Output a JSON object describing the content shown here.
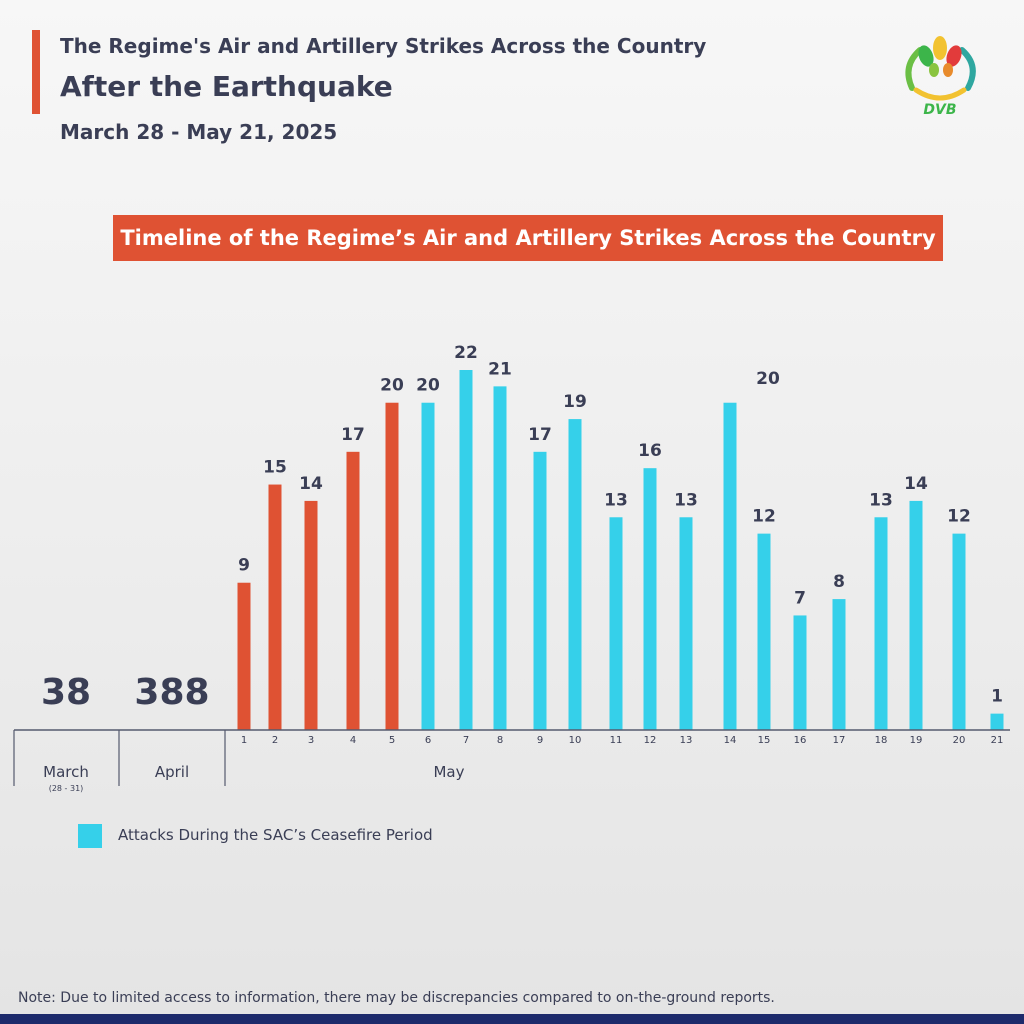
{
  "header": {
    "line1": "The Regime's Air and Artillery Strikes Across the Country",
    "line2": "After the Earthquake",
    "date_range": "March 28 - May 21, 2025"
  },
  "logo": {
    "text": "DVB",
    "icon": "dvb-logo-icon"
  },
  "banner": {
    "text": "Timeline of the Regime’s Air and Artillery Strikes Across the Country"
  },
  "chart_data": {
    "type": "bar",
    "title": "Timeline of the Regime’s Air and Artillery Strikes Across the Country",
    "ylim": [
      0,
      22
    ],
    "grid": false,
    "summaries": [
      {
        "label": "March",
        "sublabel": "(28 - 31)",
        "value": "38"
      },
      {
        "label": "April",
        "sublabel": "",
        "value": "388"
      }
    ],
    "month_label": "May",
    "categories": [
      "1",
      "2",
      "3",
      "4",
      "5",
      "6",
      "7",
      "8",
      "9",
      "10",
      "11",
      "12",
      "13",
      "14",
      "15",
      "16",
      "17",
      "18",
      "19",
      "20",
      "21"
    ],
    "values": [
      9,
      15,
      14,
      17,
      20,
      20,
      22,
      21,
      17,
      19,
      13,
      16,
      13,
      20,
      12,
      7,
      8,
      13,
      14,
      12,
      1
    ],
    "ceasefire": [
      false,
      false,
      false,
      false,
      false,
      true,
      true,
      true,
      true,
      true,
      true,
      true,
      true,
      true,
      true,
      true,
      true,
      true,
      true,
      true,
      true
    ],
    "colors": {
      "normal": "#df5233",
      "ceasefire": "#35d0ea"
    },
    "legend": {
      "label": "Attacks During the SAC’s Ceasefire Period",
      "placement": "bottom-left"
    }
  },
  "note": "Note: Due to limited access to information, there may be discrepancies compared to on-the-ground reports."
}
